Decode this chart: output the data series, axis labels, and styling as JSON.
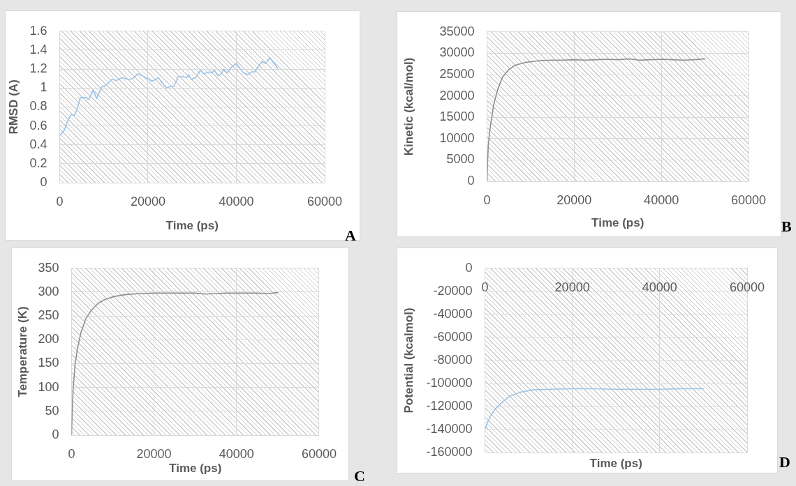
{
  "chart_data": [
    {
      "type": "line",
      "xlabel": "Time (ps)",
      "ylabel": "RMSD (A)",
      "color": "#9dc3e6",
      "x": [
        0,
        1000,
        1800,
        2600,
        3300,
        3900,
        4700,
        5800,
        6600,
        7600,
        8400,
        9500,
        10500,
        11800,
        12900,
        14200,
        15500,
        16600,
        17600,
        18700,
        20000,
        20800,
        21700,
        22400,
        23200,
        24200,
        25300,
        25900,
        26800,
        27900,
        28700,
        29200,
        29800,
        30800,
        31900,
        32600,
        33700,
        34500,
        35000,
        35800,
        36600,
        37100,
        37900,
        38900,
        40000,
        40800,
        41600,
        42600,
        43400,
        44200,
        45000,
        45800,
        46600,
        47600,
        48300,
        48800,
        49300
      ],
      "values": [
        0.5,
        0.55,
        0.65,
        0.72,
        0.71,
        0.77,
        0.9,
        0.9,
        0.88,
        0.98,
        0.89,
        1.01,
        1.03,
        1.09,
        1.08,
        1.11,
        1.09,
        1.1,
        1.15,
        1.13,
        1.1,
        1.07,
        1.09,
        1.11,
        1.05,
        1.0,
        1.02,
        1.02,
        1.12,
        1.12,
        1.11,
        1.14,
        1.09,
        1.11,
        1.19,
        1.15,
        1.17,
        1.16,
        1.19,
        1.13,
        1.15,
        1.2,
        1.16,
        1.22,
        1.26,
        1.21,
        1.16,
        1.14,
        1.17,
        1.17,
        1.23,
        1.28,
        1.26,
        1.32,
        1.27,
        1.25,
        1.21
      ],
      "xlim": [
        0,
        60000
      ],
      "xticks": [
        0,
        20000,
        40000,
        60000
      ],
      "ylim": [
        0,
        1.6
      ],
      "yticks": [
        0,
        0.2,
        0.4,
        0.6,
        0.8,
        1,
        1.2,
        1.4,
        1.6
      ],
      "grid": true,
      "annotations": [
        "A"
      ]
    },
    {
      "type": "line",
      "xlabel": "Time (ps)",
      "ylabel": "Kinetic (kcal/mol)",
      "color": "#8f8f8f",
      "x": [
        0,
        100,
        300,
        600,
        900,
        1500,
        2400,
        3500,
        5000,
        6500,
        9000,
        12500,
        15000,
        17500,
        20000,
        22500,
        25000,
        27500,
        30000,
        32500,
        35000,
        37500,
        40000,
        42500,
        45000,
        47500,
        50000
      ],
      "values": [
        0,
        3700,
        8500,
        11500,
        13700,
        17800,
        21300,
        24300,
        26200,
        27200,
        27900,
        28300,
        28400,
        28400,
        28500,
        28400,
        28500,
        28600,
        28500,
        28700,
        28400,
        28500,
        28600,
        28500,
        28400,
        28500,
        28700
      ],
      "xlim": [
        0,
        60000
      ],
      "xticks": [
        0,
        20000,
        40000,
        60000
      ],
      "ylim": [
        0,
        35000
      ],
      "yticks": [
        0,
        5000,
        10000,
        15000,
        20000,
        25000,
        30000,
        35000
      ],
      "grid": true,
      "annotations": [
        "B"
      ]
    },
    {
      "type": "line",
      "xlabel": "Time (ps)",
      "ylabel": "Temperature (K)",
      "color": "#8f8f8f",
      "x": [
        0,
        170,
        400,
        850,
        1400,
        2250,
        3400,
        4800,
        6500,
        8200,
        10400,
        13200,
        16600,
        20000,
        22500,
        25000,
        27500,
        30000,
        32500,
        35000,
        37500,
        40000,
        42500,
        45000,
        47500,
        50000
      ],
      "values": [
        0,
        50,
        99,
        147,
        180,
        214,
        243,
        262,
        277,
        285,
        291,
        295,
        297,
        298,
        298,
        298,
        298,
        298,
        296,
        297,
        298,
        298,
        298,
        298,
        297,
        299
      ],
      "xlim": [
        0,
        60000
      ],
      "xticks": [
        0,
        20000,
        40000,
        60000
      ],
      "ylim": [
        0,
        350
      ],
      "yticks": [
        0,
        50,
        100,
        150,
        200,
        250,
        300,
        350
      ],
      "grid": true,
      "annotations": [
        "C"
      ]
    },
    {
      "type": "line",
      "xlabel": "Time (ps)",
      "ylabel": "Potential (kcalmol)",
      "color": "#9dc3e6",
      "x": [
        0,
        700,
        1300,
        2500,
        4000,
        5700,
        8100,
        11000,
        15000,
        20000,
        25000,
        30000,
        35000,
        40000,
        45000,
        50000
      ],
      "values": [
        -139500,
        -133000,
        -128000,
        -121500,
        -116000,
        -111000,
        -107500,
        -105500,
        -105000,
        -104500,
        -104500,
        -105000,
        -105000,
        -105000,
        -104500,
        -104500
      ],
      "xlim": [
        0,
        60000
      ],
      "xticks": [
        0,
        20000,
        40000,
        60000
      ],
      "ylim": [
        -160000,
        0
      ],
      "yticks": [
        -160000,
        -140000,
        -120000,
        -100000,
        -80000,
        -60000,
        -40000,
        -20000,
        0
      ],
      "grid": true,
      "annotations": [
        "D"
      ]
    }
  ]
}
